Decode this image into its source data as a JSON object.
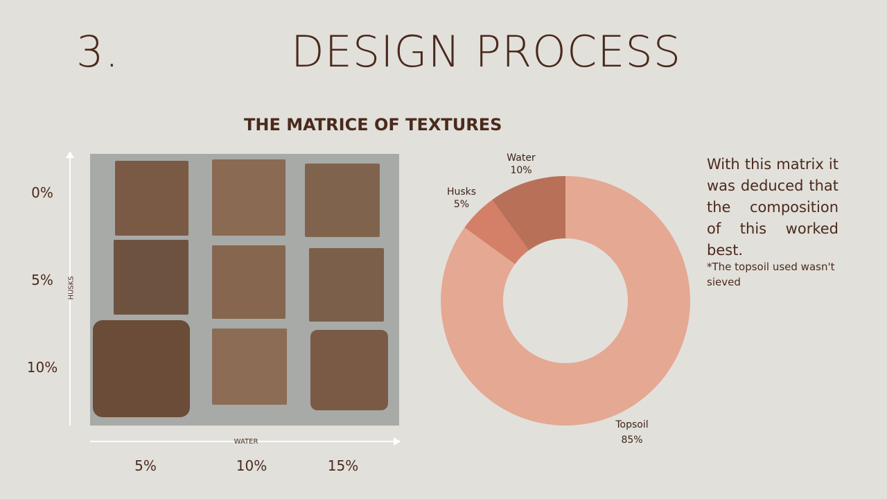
{
  "header": {
    "number": "3.",
    "title": "DESIGN PROCESS"
  },
  "matrix": {
    "title": "THE MATRICE OF TEXTURES",
    "husks_axis_label": "HUSKS",
    "water_axis_label": "WATER",
    "row_labels": [
      "0%",
      "5%",
      "10%"
    ],
    "col_labels": [
      "5%",
      "10%",
      "15%"
    ]
  },
  "description": "With this matrix it was deduced that the composition of this worked best.",
  "note": "*The topsoil used wasn't sieved",
  "chart_data": {
    "type": "pie",
    "donut": true,
    "categories": [
      "Topsoil",
      "Husks",
      "Water"
    ],
    "values": [
      85,
      5,
      10
    ],
    "value_labels": [
      "85%",
      "5%",
      "10%"
    ],
    "colors": [
      "#e5a893",
      "#d47f68",
      "#b87059"
    ]
  }
}
